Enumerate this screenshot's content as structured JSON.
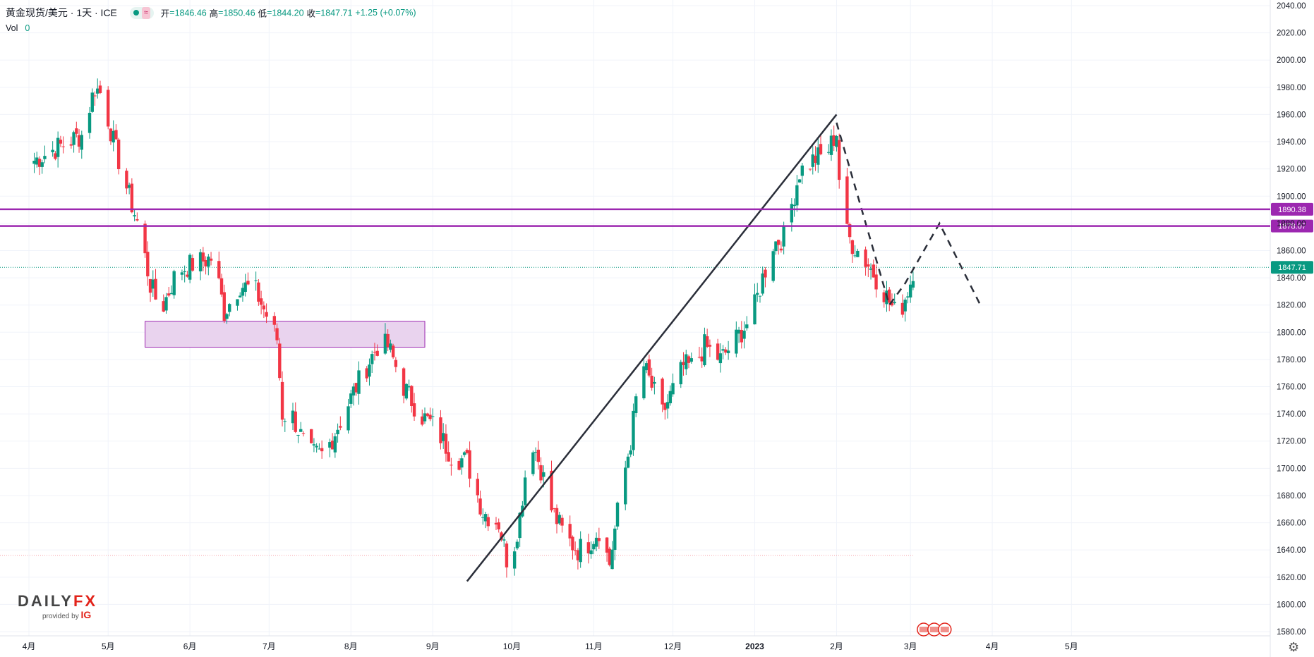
{
  "header": {
    "symbol": "黄金现货/美元 · 1天 · ICE",
    "open_label": "开",
    "open": "1846.46",
    "high_label": "高",
    "high": "1850.46",
    "low_label": "低",
    "low": "1844.20",
    "close_label": "收",
    "close": "1847.71",
    "change": "+1.25 (+0.07%)",
    "wave_icon": "≈"
  },
  "volume": {
    "label": "Vol",
    "value": "0"
  },
  "logo": {
    "brand_a": "DAILY",
    "brand_b": "FX",
    "provided": "provided by",
    "ig": "IG"
  },
  "colors": {
    "up": "#089981",
    "down": "#f23645",
    "level": "#9c27b0",
    "zone": "#e9d3ee",
    "trend": "#2a2e39"
  },
  "chart_data": {
    "type": "candlestick",
    "ylim": [
      1580,
      2040
    ],
    "yticks": [
      "1580.00",
      "1600.00",
      "1620.00",
      "1640.00",
      "1660.00",
      "1680.00",
      "1700.00",
      "1720.00",
      "1740.00",
      "1760.00",
      "1780.00",
      "1800.00",
      "1820.00",
      "1840.00",
      "1860.00",
      "1880.00",
      "1900.00",
      "1920.00",
      "1940.00",
      "1960.00",
      "1980.00",
      "2000.00",
      "2020.00",
      "2040.00"
    ],
    "xticks": [
      "4月",
      "5月",
      "6月",
      "7月",
      "8月",
      "9月",
      "10月",
      "11月",
      "12月",
      "2023",
      "2月",
      "3月",
      "4月",
      "5月"
    ],
    "xtick_days": [
      0,
      30,
      61,
      91,
      122,
      153,
      183,
      214,
      244,
      275,
      306,
      334,
      365,
      395
    ],
    "x_units": "days since 2022-04-01",
    "horizontal_levels": [
      {
        "price": 1890.38,
        "label": "1890.38"
      },
      {
        "price": 1878.07,
        "label": "1878.07"
      }
    ],
    "last_price": {
      "price": 1847.71,
      "label": "1847.71"
    },
    "low_reference": 1636,
    "zone": {
      "x0": 44,
      "x1": 150,
      "y0": 1789,
      "y1": 1808
    },
    "trendline": [
      [
        166,
        1617
      ],
      [
        306,
        1960
      ]
    ],
    "projection": [
      [
        306,
        1954
      ],
      [
        326,
        1820
      ],
      [
        332,
        1836
      ],
      [
        345,
        1880
      ],
      [
        361,
        1818
      ]
    ],
    "projection2": [
      [
        332,
        1820
      ],
      [
        345,
        1880
      ]
    ],
    "anchors": [
      [
        0,
        1924
      ],
      [
        10,
        1935
      ],
      [
        20,
        1945
      ],
      [
        25,
        1980
      ],
      [
        28,
        1974
      ],
      [
        32,
        1940
      ],
      [
        38,
        1900
      ],
      [
        42,
        1875
      ],
      [
        46,
        1835
      ],
      [
        50,
        1815
      ],
      [
        56,
        1845
      ],
      [
        62,
        1850
      ],
      [
        70,
        1855
      ],
      [
        74,
        1815
      ],
      [
        80,
        1835
      ],
      [
        86,
        1830
      ],
      [
        94,
        1795
      ],
      [
        96,
        1740
      ],
      [
        100,
        1738
      ],
      [
        106,
        1710
      ],
      [
        112,
        1710
      ],
      [
        118,
        1735
      ],
      [
        124,
        1760
      ],
      [
        132,
        1790
      ],
      [
        136,
        1790
      ],
      [
        142,
        1760
      ],
      [
        148,
        1740
      ],
      [
        154,
        1730
      ],
      [
        160,
        1710
      ],
      [
        166,
        1705
      ],
      [
        172,
        1668
      ],
      [
        178,
        1660
      ],
      [
        182,
        1625
      ],
      [
        186,
        1665
      ],
      [
        190,
        1725
      ],
      [
        194,
        1700
      ],
      [
        198,
        1670
      ],
      [
        203,
        1650
      ],
      [
        208,
        1640
      ],
      [
        212,
        1645
      ],
      [
        216,
        1655
      ],
      [
        220,
        1630
      ],
      [
        224,
        1680
      ],
      [
        228,
        1720
      ],
      [
        232,
        1780
      ],
      [
        240,
        1740
      ],
      [
        248,
        1775
      ],
      [
        252,
        1775
      ],
      [
        256,
        1790
      ],
      [
        262,
        1780
      ],
      [
        268,
        1795
      ],
      [
        274,
        1812
      ],
      [
        278,
        1840
      ],
      [
        282,
        1865
      ],
      [
        286,
        1870
      ],
      [
        292,
        1918
      ],
      [
        298,
        1928
      ],
      [
        302,
        1930
      ],
      [
        306,
        1947
      ],
      [
        308,
        1880
      ],
      [
        312,
        1865
      ],
      [
        318,
        1850
      ],
      [
        324,
        1830
      ],
      [
        328,
        1815
      ],
      [
        331,
        1820
      ],
      [
        334,
        1837
      ],
      [
        335,
        1846
      ]
    ]
  }
}
